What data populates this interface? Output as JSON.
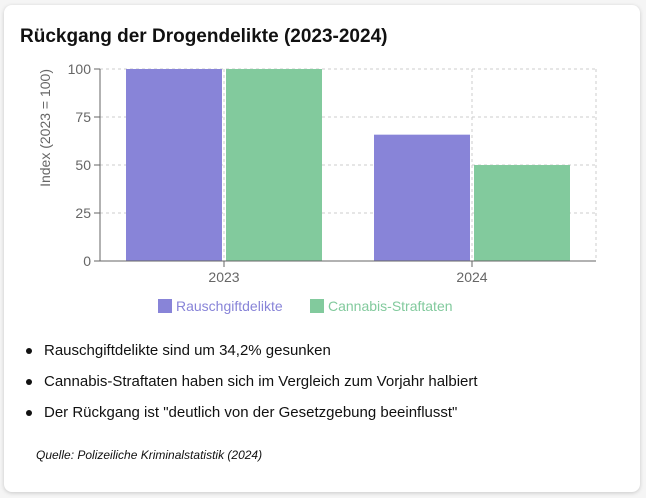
{
  "colors": {
    "series_1": "#8884d8",
    "series_2": "#82ca9d",
    "axis": "#666666",
    "grid": "#cccccc"
  },
  "chart_data": {
    "type": "bar",
    "title": "Rückgang der Drogendelikte (2023-2024)",
    "ylabel": "Index (2023 = 100)",
    "xlabel": "",
    "categories": [
      "2023",
      "2024"
    ],
    "yticks": [
      0,
      25,
      50,
      75,
      100
    ],
    "ylim": [
      0,
      100
    ],
    "grid": true,
    "legend_position": "bottom",
    "series": [
      {
        "name": "Rauschgiftdelikte",
        "values": [
          100,
          65.8
        ],
        "color": "#8884d8"
      },
      {
        "name": "Cannabis-Straftaten",
        "values": [
          100,
          50
        ],
        "color": "#82ca9d"
      }
    ]
  },
  "bullets": [
    "Rauschgiftdelikte sind um 34,2% gesunken",
    "Cannabis-Straftaten haben sich im Vergleich zum Vorjahr halbiert",
    "Der Rückgang ist \"deutlich von der Gesetzgebung beeinflusst\""
  ],
  "source": "Quelle: Polizeiliche Kriminalstatistik (2024)"
}
